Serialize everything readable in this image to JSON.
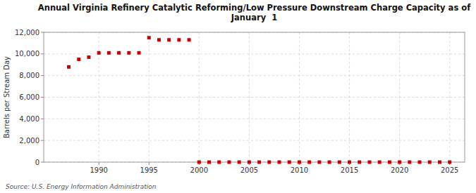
{
  "chart_data": {
    "type": "scatter",
    "title": "Annual Virginia Refinery Catalytic Reforming/Low Pressure Downstream Charge Capacity as of\nJanuary  1",
    "y_label": "Barrels per Stream Day",
    "annotations": [
      "Source: U.S. Energy Information Administration"
    ],
    "color": "#cc0000",
    "marker": "square",
    "grid": true,
    "xlim": [
      1984.5,
      2026.5
    ],
    "ylim": [
      0,
      12000
    ],
    "xticks": [
      1990,
      1995,
      2000,
      2005,
      2010,
      2015,
      2020,
      2025
    ],
    "yticks": [
      0,
      {
        "value": 2000,
        "label": "2,000"
      },
      {
        "value": 4000,
        "label": "4,000"
      },
      {
        "value": 6000,
        "label": "6,000"
      },
      {
        "value": 8000,
        "label": "8,000"
      },
      {
        "value": 10000,
        "label": "10,000"
      },
      {
        "value": 12000,
        "label": "12,000"
      }
    ],
    "x": [
      1987,
      1988,
      1989,
      1990,
      1991,
      1992,
      1993,
      1994,
      1995,
      1996,
      1997,
      1998,
      1999,
      2000,
      2001,
      2002,
      2003,
      2004,
      2005,
      2006,
      2007,
      2008,
      2009,
      2010,
      2011,
      2012,
      2013,
      2014,
      2015,
      2016,
      2017,
      2018,
      2019,
      2020,
      2021,
      2022,
      2023,
      2024,
      2025
    ],
    "values": [
      8800,
      9500,
      9700,
      10100,
      10100,
      10100,
      10100,
      10100,
      11500,
      11300,
      11300,
      11300,
      11300,
      0,
      0,
      0,
      0,
      0,
      0,
      0,
      0,
      0,
      0,
      0,
      0,
      0,
      0,
      0,
      0,
      0,
      0,
      0,
      0,
      0,
      0,
      0,
      0,
      0,
      0
    ]
  }
}
